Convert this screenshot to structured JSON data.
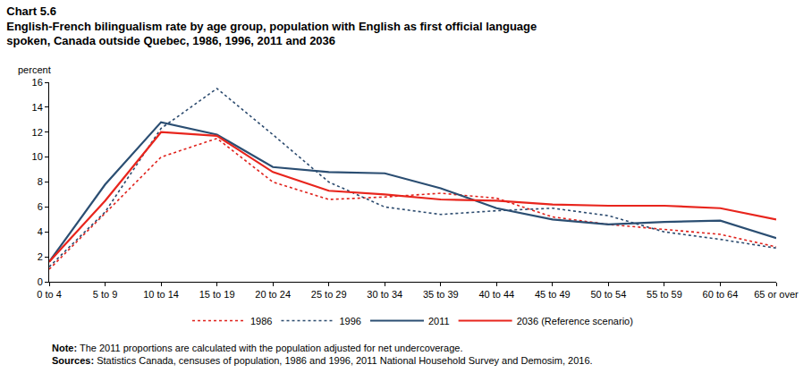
{
  "chart_data": {
    "type": "line",
    "figure_label": "Chart 5.6",
    "title": "English-French bilingualism rate by age group, population with English as first official language spoken, Canada outside Quebec, 1986, 1996, 2011 and 2036",
    "y_label": "percent",
    "categories": [
      "0 to 4",
      "5 to 9",
      "10 to 14",
      "15 to 19",
      "20 to 24",
      "25 to 29",
      "30 to 34",
      "35 to 39",
      "40 to 44",
      "45 to 49",
      "50 to 54",
      "55 to 59",
      "60 to 64",
      "65 or over"
    ],
    "series": [
      {
        "name": "1986",
        "color": "#e0201a",
        "line_style": "dotted",
        "values": [
          1.0,
          5.5,
          10.0,
          11.5,
          8.0,
          6.6,
          6.8,
          7.1,
          6.7,
          5.2,
          4.6,
          4.2,
          3.8,
          2.8
        ]
      },
      {
        "name": "1996",
        "color": "#2b4a6e",
        "line_style": "dotted",
        "values": [
          1.2,
          5.6,
          12.3,
          15.5,
          11.8,
          8.0,
          6.0,
          5.4,
          5.7,
          5.9,
          5.3,
          4.0,
          3.4,
          2.7
        ]
      },
      {
        "name": "2011",
        "color": "#2b4e72",
        "line_style": "solid",
        "values": [
          1.6,
          7.8,
          12.8,
          11.8,
          9.2,
          8.8,
          8.7,
          7.5,
          5.9,
          5.0,
          4.6,
          4.8,
          4.9,
          3.5
        ]
      },
      {
        "name": "2036 (Reference scenario)",
        "color": "#e8251d",
        "line_style": "solid",
        "values": [
          1.6,
          6.5,
          12.0,
          11.7,
          8.8,
          7.3,
          7.0,
          6.6,
          6.5,
          6.2,
          6.1,
          6.1,
          5.9,
          5.0
        ]
      }
    ],
    "ylim": [
      0,
      16
    ],
    "yticks": [
      0,
      2,
      4,
      6,
      8,
      10,
      12,
      14,
      16
    ],
    "grid": false,
    "legend": "bottom",
    "notes": [
      {
        "label": "Note:",
        "text": "The 2011 proportions are calculated with the population adjusted for net undercoverage."
      },
      {
        "label": "Sources:",
        "text": "Statistics Canada, censuses of population, 1986 and 1996, 2011 National Household Survey and Demosim, 2016."
      }
    ]
  }
}
